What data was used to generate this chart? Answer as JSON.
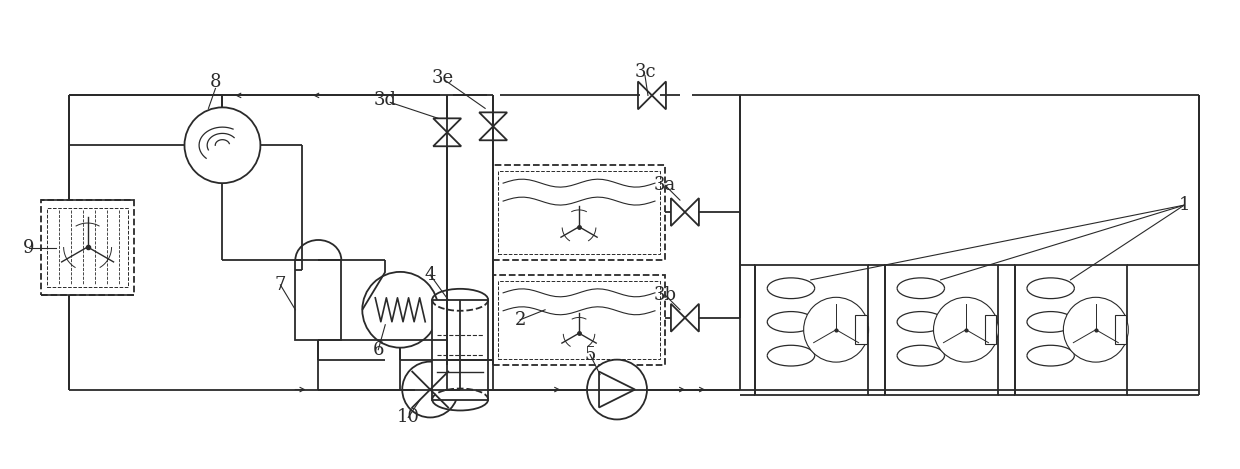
{
  "bg_color": "#ffffff",
  "line_color": "#2a2a2a",
  "lw": 1.3,
  "fig_width": 12.4,
  "fig_height": 4.69,
  "xlim": [
    0,
    1240
  ],
  "ylim": [
    0,
    469
  ]
}
